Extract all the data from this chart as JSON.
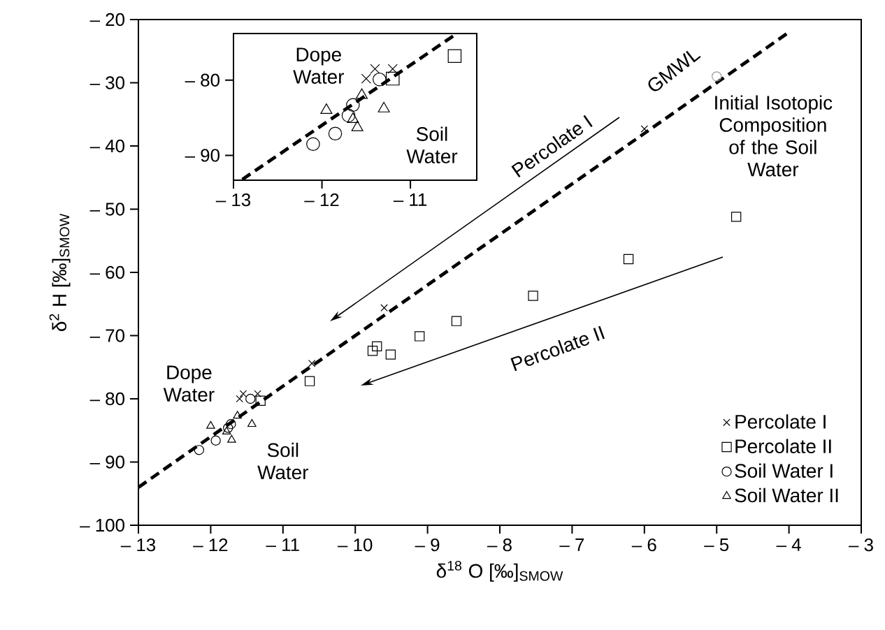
{
  "chart_data": [
    {
      "type": "scatter",
      "xlabel": "δ$^{18}$ O [‰]$_{SMOW}$",
      "ylabel": "δ$^{2}$ H [‰]$_{SMOW}$",
      "xlim": [
        -13,
        -3
      ],
      "ylim": [
        -100,
        -20
      ],
      "xticks": [
        {
          "value": -13,
          "label": "– 13"
        },
        {
          "value": -12,
          "label": "– 12"
        },
        {
          "value": -11,
          "label": "– 11"
        },
        {
          "value": -10,
          "label": "– 10"
        },
        {
          "value": -9,
          "label": "– 9"
        },
        {
          "value": -8,
          "label": "– 8"
        },
        {
          "value": -7,
          "label": "– 7"
        },
        {
          "value": -6,
          "label": "– 6"
        },
        {
          "value": -5,
          "label": "– 5"
        },
        {
          "value": -4,
          "label": "– 4"
        },
        {
          "value": -3,
          "label": "– 3"
        }
      ],
      "yticks": [
        {
          "value": -20,
          "label": "– 20"
        },
        {
          "value": -30,
          "label": "– 30"
        },
        {
          "value": -40,
          "label": "– 40"
        },
        {
          "value": -50,
          "label": "– 50"
        },
        {
          "value": -60,
          "label": "– 60"
        },
        {
          "value": -70,
          "label": "– 70"
        },
        {
          "value": -80,
          "label": "– 80"
        },
        {
          "value": -90,
          "label": "– 90"
        },
        {
          "value": -100,
          "label": "– 100"
        }
      ],
      "legend": "bottom right",
      "series": [
        {
          "type": "line",
          "color": "#000000",
          "line_style": "dashed",
          "marker": "none",
          "x": [
            -13,
            -4
          ],
          "values": [
            -94,
            -22
          ]
        },
        {
          "name": "Percolate I",
          "color": "#000000",
          "marker": "cross",
          "x": [
            -6.0,
            -9.6,
            -10.6,
            -11.55,
            -11.35,
            -11.6
          ],
          "values": [
            -37.3,
            -65.6,
            -74.4,
            -79.2,
            -79.2,
            -80
          ]
        },
        {
          "name": "Percolate II",
          "color": "#000000",
          "marker": "square",
          "x": [
            -4.73,
            -6.22,
            -7.54,
            -8.6,
            -9.11,
            -9.76,
            -9.7,
            -9.51,
            -10.63,
            -11.31
          ],
          "values": [
            -51.2,
            -57.9,
            -63.7,
            -67.7,
            -70.1,
            -72.4,
            -71.7,
            -73,
            -77.2,
            -80.3
          ]
        },
        {
          "name": "Soil Water I",
          "color": "#000000",
          "marker": "circle",
          "x": [
            -12.16,
            -11.93,
            -11.76,
            -11.72
          ],
          "values": [
            -88.1,
            -86.6,
            -84.6,
            -84
          ]
        },
        {
          "name": "Soil Water II",
          "color": "#000000",
          "marker": "triangle",
          "x": [
            -12.0,
            -11.63,
            -11.43,
            -11.71,
            -11.78
          ],
          "values": [
            -84.3,
            -82.7,
            -84,
            -86.5,
            -85.2
          ]
        },
        {
          "color": "#000000",
          "marker": "circle",
          "x": [
            -11.45
          ],
          "values": [
            -80
          ]
        },
        {
          "color": "#9a9a9a",
          "marker": "circle",
          "x": [
            -5.0
          ],
          "values": [
            -29
          ]
        }
      ],
      "annotations": [
        "Dope Water",
        "Soil Water",
        "Percolate I",
        "Percolate II",
        "GMWL",
        "Initial Isotopic Composition of the Soil Water"
      ]
    },
    {
      "type": "scatter",
      "xlim": [
        -13,
        -10.25
      ],
      "ylim": [
        -93.3,
        -73.8
      ],
      "xticks": [
        {
          "value": -13,
          "label": "– 13"
        },
        {
          "value": -12,
          "label": "– 12"
        },
        {
          "value": -11,
          "label": "– 11"
        }
      ],
      "yticks": [
        {
          "value": -80,
          "label": "– 80"
        },
        {
          "value": -90,
          "label": "– 90"
        }
      ],
      "series": [
        {
          "type": "line",
          "color": "#000000",
          "line_style": "dashed",
          "marker": "none",
          "x": [
            -12.9,
            -10.5
          ],
          "values": [
            -93.2,
            -74
          ]
        },
        {
          "color": "#000000",
          "marker": "cross",
          "x": [
            -11.4,
            -11.2,
            -11.5
          ],
          "values": [
            -78.5,
            -78.5,
            -79.8
          ]
        },
        {
          "color": "#000000",
          "marker": "square",
          "x": [
            -10.5,
            -11.2
          ],
          "values": [
            -76.8,
            -79.8
          ]
        },
        {
          "color": "#000000",
          "marker": "circle",
          "x": [
            -12.1,
            -11.85,
            -11.7,
            -11.65
          ],
          "values": [
            -88.5,
            -87.1,
            -84.7,
            -83.3
          ]
        },
        {
          "color": "#000000",
          "marker": "triangle",
          "x": [
            -11.95,
            -11.55,
            -11.3,
            -11.6,
            -11.65
          ],
          "values": [
            -84.0,
            -82.0,
            -83.8,
            -86.3,
            -85.2
          ]
        },
        {
          "color": "#000000",
          "marker": "circle",
          "x": [
            -11.35
          ],
          "values": [
            -79.9
          ]
        }
      ],
      "annotations": [
        "Dope Water",
        "Soil Water"
      ]
    }
  ]
}
